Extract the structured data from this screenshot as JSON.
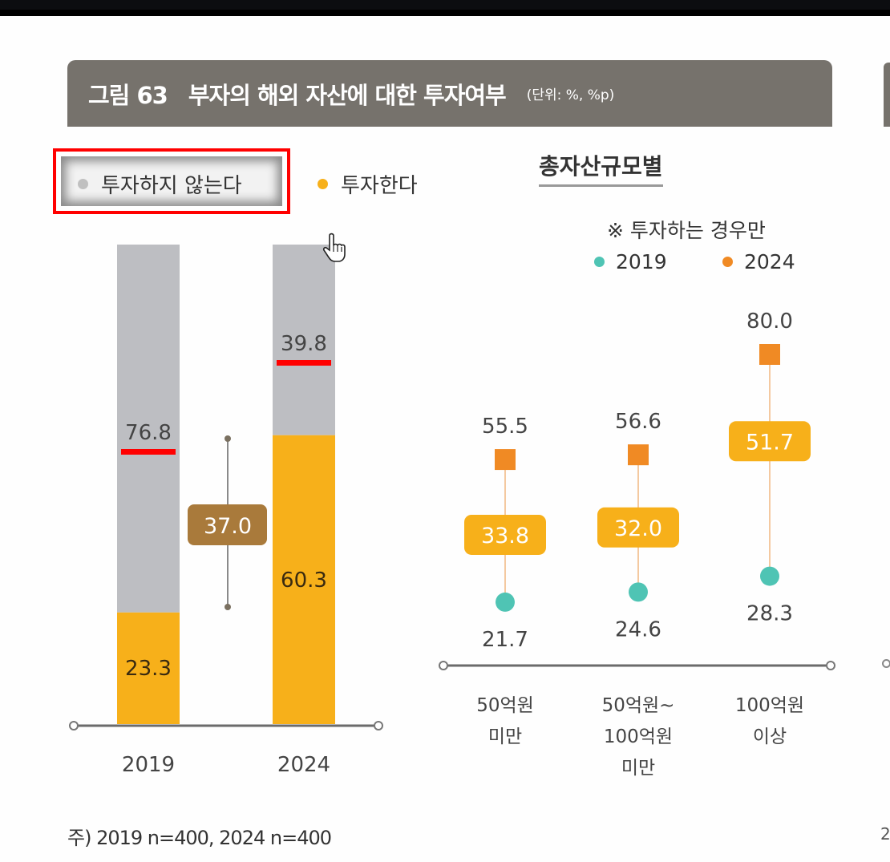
{
  "title": {
    "figure_number": "그림 63",
    "text": "부자의 해외 자산에 대한 투자여부",
    "unit": "(단위: %, %p)"
  },
  "legend_left": {
    "items": [
      {
        "label": "투자하지 않는다",
        "color": "#c0c0c0"
      },
      {
        "label": "투자한다",
        "color": "#f7b01a"
      }
    ]
  },
  "right_panel": {
    "subtitle": "총자산규모별",
    "note": "※ 투자하는 경우만",
    "legend": [
      {
        "label": "2019",
        "color": "#4fc4b4"
      },
      {
        "label": "2024",
        "color": "#f08a24"
      }
    ]
  },
  "footnote": "주) 2019 n=400, 2024 n=400",
  "next_panel_footnote": "2",
  "colors": {
    "not_invest": "#bdbec2",
    "invest": "#f7b01a",
    "diff_badge": "#a97a3b",
    "dot_2019": "#4fc4b4",
    "sq_2024": "#f08a24",
    "gap_badge": "#f7b01a",
    "highlight": "#ff0000"
  },
  "chart_data": [
    {
      "type": "bar",
      "stacked": true,
      "categories": [
        "2019",
        "2024"
      ],
      "series": [
        {
          "name": "투자한다",
          "values": [
            23.3,
            60.3
          ]
        },
        {
          "name": "투자하지 않는다",
          "values": [
            76.8,
            39.8
          ]
        }
      ],
      "difference_label": "37.0",
      "difference_value": 37.0,
      "highlighted_labels": [
        "76.8",
        "39.8"
      ],
      "ylim": [
        0,
        100
      ],
      "grid": false,
      "legend": "top-left"
    },
    {
      "type": "dumbbell",
      "title": "총자산규모별",
      "note": "※ 투자하는 경우만",
      "categories": [
        [
          "50억원",
          "미만"
        ],
        [
          "50억원~",
          "100억원",
          "미만"
        ],
        [
          "100억원",
          "이상"
        ]
      ],
      "series": [
        {
          "name": "2019",
          "values": [
            21.7,
            24.6,
            28.3
          ]
        },
        {
          "name": "2024",
          "values": [
            55.5,
            56.6,
            80.0
          ]
        }
      ],
      "gaps": [
        "33.8",
        "32.0",
        "51.7"
      ],
      "ylim": [
        0,
        100
      ],
      "grid": false,
      "legend": "top-right"
    }
  ]
}
